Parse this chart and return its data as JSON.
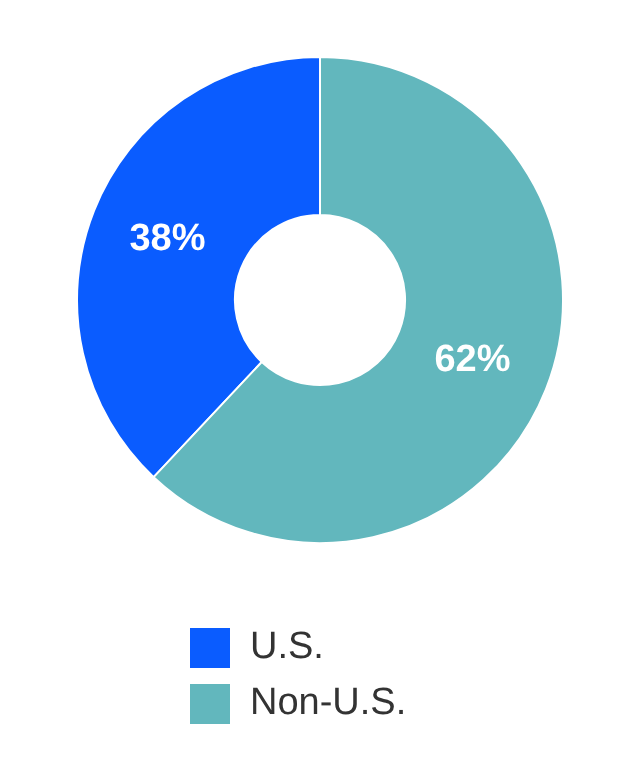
{
  "chart_data": {
    "type": "donut",
    "categories": [
      "U.S.",
      "Non-U.S."
    ],
    "values": [
      38,
      62
    ],
    "colors": [
      "#0a5cff",
      "#62b7bd"
    ],
    "value_labels": [
      "38%",
      "62%"
    ],
    "legend": "bottom"
  }
}
